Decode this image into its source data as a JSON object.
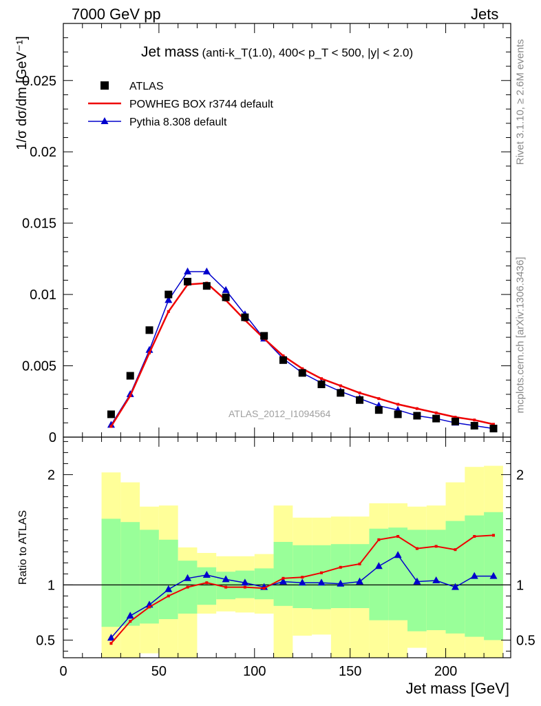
{
  "header": {
    "left": "7000 GeV pp",
    "right": "Jets"
  },
  "title_main": "Jet mass",
  "title_sub": "(anti-k_T(1.0), 400< p_T < 500, |y| < 2.0)",
  "side_text": {
    "rivet": "Rivet 3.1.10, ≥ 2.6M events",
    "mcplots": "mcplots.cern.ch [arXiv:1306.3436]"
  },
  "watermark": "ATLAS_2012_I1094564",
  "colors": {
    "data": "#000000",
    "powheg": "#ee0000",
    "pythia": "#0000cc",
    "band_outer": "#ffff99",
    "band_inner": "#99ff99"
  },
  "chart_data": [
    {
      "type": "scatter",
      "panel": "main",
      "ylabel": "1/σ dσ/dm [GeV⁻¹]",
      "ylim": [
        0,
        0.029
      ],
      "yticks": [
        "0",
        "0.005",
        "0.01",
        "0.015",
        "0.02",
        "0.025"
      ],
      "xlim": [
        0,
        234
      ],
      "x": [
        25,
        35,
        45,
        55,
        65,
        75,
        85,
        95,
        105,
        115,
        125,
        135,
        145,
        155,
        165,
        175,
        185,
        195,
        205,
        215,
        225
      ],
      "series": [
        {
          "name": "ATLAS",
          "marker": "square",
          "values": [
            0.0016,
            0.0043,
            0.0075,
            0.01,
            0.0109,
            0.0106,
            0.0098,
            0.0084,
            0.0071,
            0.0054,
            0.0045,
            0.0037,
            0.0031,
            0.0026,
            0.0019,
            0.0016,
            0.0015,
            0.0013,
            0.0011,
            0.0008,
            0.0006
          ]
        },
        {
          "name": "POWHEG BOX r3744 default",
          "marker": "line",
          "values": [
            0.00075,
            0.0029,
            0.0059,
            0.0088,
            0.0107,
            0.0108,
            0.0096,
            0.0082,
            0.0069,
            0.0057,
            0.0048,
            0.0041,
            0.0036,
            0.0031,
            0.0027,
            0.0023,
            0.002,
            0.0017,
            0.0014,
            0.0012,
            0.0009
          ]
        },
        {
          "name": "Pythia 8.308 default",
          "marker": "triangle",
          "values": [
            0.00085,
            0.003,
            0.0061,
            0.0096,
            0.0116,
            0.0116,
            0.0103,
            0.0086,
            0.0069,
            0.0055,
            0.0045,
            0.0038,
            0.0032,
            0.0027,
            0.0022,
            0.0019,
            0.0015,
            0.0013,
            0.001,
            0.0008,
            0.0006
          ]
        }
      ],
      "legend_position": "top-left"
    },
    {
      "type": "line",
      "panel": "ratio",
      "ylabel": "Ratio to ATLAS",
      "xlabel": "Jet mass [GeV]",
      "xlim": [
        0,
        234
      ],
      "ylim": [
        0.34,
        2.34
      ],
      "yticks": [
        "0.5",
        "1",
        "2"
      ],
      "xticks": [
        "0",
        "50",
        "100",
        "150",
        "200"
      ],
      "x": [
        25,
        35,
        45,
        55,
        65,
        75,
        85,
        95,
        105,
        115,
        125,
        135,
        145,
        155,
        165,
        175,
        185,
        195,
        205,
        215,
        225
      ],
      "bin_edges": [
        20,
        30,
        40,
        50,
        60,
        70,
        80,
        90,
        100,
        110,
        120,
        130,
        140,
        150,
        160,
        170,
        180,
        190,
        200,
        210,
        220,
        230
      ],
      "series": [
        {
          "name": "POWHEG BOX r3744 default",
          "values": [
            0.47,
            0.67,
            0.8,
            0.9,
            0.98,
            1.02,
            0.98,
            0.98,
            0.97,
            1.06,
            1.07,
            1.11,
            1.16,
            1.19,
            1.41,
            1.44,
            1.33,
            1.35,
            1.32,
            1.44,
            1.45
          ]
        },
        {
          "name": "Pythia 8.308 default",
          "values": [
            0.52,
            0.72,
            0.82,
            0.96,
            1.06,
            1.09,
            1.05,
            1.02,
            0.98,
            1.03,
            1.02,
            1.02,
            1.01,
            1.03,
            1.17,
            1.27,
            1.03,
            1.04,
            0.98,
            1.08,
            1.08
          ]
        }
      ],
      "band_outer": {
        "low": [
          0.34,
          0.34,
          0.38,
          0.34,
          0.34,
          0.74,
          0.76,
          0.75,
          0.74,
          0.34,
          0.54,
          0.55,
          0.34,
          0.34,
          0.34,
          0.34,
          0.43,
          0.34,
          0.34,
          0.34,
          0.34
        ],
        "high": [
          2.02,
          1.93,
          1.71,
          1.72,
          1.34,
          1.29,
          1.26,
          1.26,
          1.28,
          1.72,
          1.61,
          1.61,
          1.62,
          1.62,
          1.74,
          1.74,
          1.71,
          1.72,
          1.93,
          2.07,
          2.08
        ]
      },
      "band_inner": {
        "low": [
          0.62,
          0.63,
          0.65,
          0.69,
          0.74,
          0.82,
          0.87,
          0.88,
          0.87,
          0.81,
          0.79,
          0.78,
          0.79,
          0.79,
          0.68,
          0.68,
          0.58,
          0.59,
          0.56,
          0.53,
          0.5
        ],
        "high": [
          1.6,
          1.57,
          1.5,
          1.41,
          1.22,
          1.16,
          1.12,
          1.13,
          1.15,
          1.39,
          1.36,
          1.36,
          1.37,
          1.37,
          1.51,
          1.52,
          1.5,
          1.5,
          1.58,
          1.63,
          1.66
        ]
      }
    }
  ]
}
